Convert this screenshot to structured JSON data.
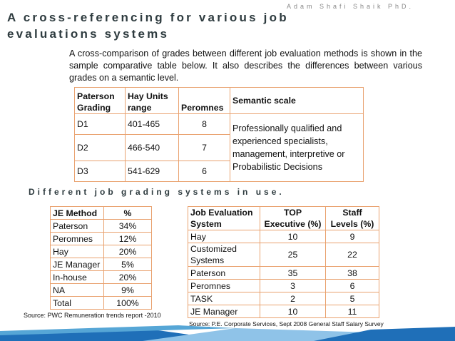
{
  "author": "Adam Shafi Shaik PhD.",
  "title": "A cross-referencing for various job evaluations systems",
  "intro": "A cross-comparison of grades between different job evaluation methods is shown in the sample comparative table below. It also describes the differences between various grades on a semantic level.",
  "table1": {
    "headers": [
      "Paterson Grading",
      "Hay Units range",
      "Peromnes",
      "Semantic scale"
    ],
    "rows": [
      [
        "D1",
        "401-465",
        "8"
      ],
      [
        "D2",
        "466-540",
        "7"
      ],
      [
        "D3",
        "541-629",
        "6"
      ]
    ],
    "semantic": "Professionally qualified and experienced specialists, management, interpretive or Probabilistic Decisions"
  },
  "subtitle": "Different job grading systems in use.",
  "table2": {
    "headers": [
      "JE Method",
      "%"
    ],
    "rows": [
      [
        "Paterson",
        "34%"
      ],
      [
        "Peromnes",
        "12%"
      ],
      [
        "Hay",
        "20%"
      ],
      [
        "JE Manager",
        "5%"
      ],
      [
        "In-house",
        "20%"
      ],
      [
        "NA",
        "9%"
      ],
      [
        "Total",
        "100%"
      ]
    ]
  },
  "source1": "Source: PWC Remuneration trends report -2010",
  "table3": {
    "headers": [
      "Job Evaluation System",
      "TOP Executive (%)",
      "Staff Levels (%)"
    ],
    "rows": [
      [
        "Hay",
        "10",
        "9"
      ],
      [
        "Customized Systems",
        "25",
        "22"
      ],
      [
        "Paterson",
        "35",
        "38"
      ],
      [
        "Peromnes",
        "3",
        "6"
      ],
      [
        "TASK",
        "2",
        "5"
      ],
      [
        "JE Manager",
        "10",
        "11"
      ]
    ]
  },
  "source2": {
    "label": "Source:",
    "text": "P.E. Corporate Services, Sept 2008 General Staff Salary Survey"
  }
}
